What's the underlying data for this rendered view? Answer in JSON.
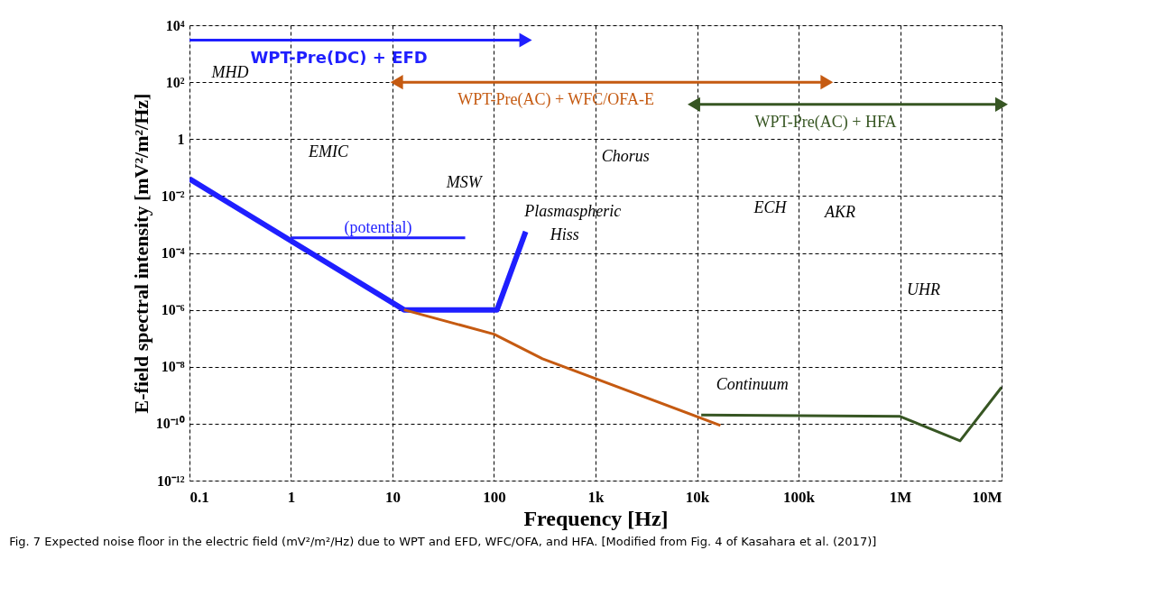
{
  "chart_data": {
    "type": "line",
    "xlabel": "Frequency [Hz]",
    "ylabel": "E-field spectral intensity [mV²/m²/Hz]",
    "xlim": [
      0.1,
      10000000
    ],
    "ylim": [
      1e-12,
      10000
    ],
    "log": "xy",
    "grid": true,
    "xticks": [
      0.1,
      1,
      10,
      100,
      {
        "value": 1000,
        "label": "1k"
      },
      {
        "value": 10000,
        "label": "10k"
      },
      {
        "value": 100000,
        "label": "100k"
      },
      {
        "value": 1000000,
        "label": "1M"
      },
      {
        "value": 10000000,
        "label": "10M"
      }
    ],
    "yticks": [
      {
        "value": 1e-12,
        "label": "10⁻¹²"
      },
      {
        "value": 1e-10,
        "label": "10⁻¹⁰"
      },
      {
        "value": 1e-08,
        "label": "10⁻⁸"
      },
      {
        "value": 1e-06,
        "label": "10⁻⁶"
      },
      {
        "value": 0.0001,
        "label": "10⁻⁴"
      },
      {
        "value": 0.01,
        "label": "10⁻²"
      },
      1,
      {
        "value": 100,
        "label": "10²"
      },
      {
        "value": 10000,
        "label": "10⁴"
      }
    ],
    "series": [
      {
        "color": "#1f1fff",
        "x": [
          0.1,
          13,
          107,
          205
        ],
        "values": [
          0.04,
          1e-06,
          1e-06,
          0.00056
        ]
      },
      {
        "color": "#c55a11",
        "x": [
          13,
          100,
          300,
          17000
        ],
        "values": [
          1e-06,
          1.4e-07,
          1.9e-08,
          8.7e-11
        ]
      },
      {
        "color": "#375623",
        "x": [
          11000,
          1000000,
          3900000,
          10000000
        ],
        "values": [
          2e-10,
          1.8e-10,
          2.5e-11,
          1.9e-09
        ]
      },
      {
        "name": "(potential)",
        "color": "#1f1fff",
        "x": [
          1,
          52
        ],
        "values": [
          0.00034,
          0.00034
        ]
      },
      {
        "name": "WPT-Pre(DC) + EFD",
        "color": "#1f1fff",
        "marker": "triangle",
        "x": [
          0.1,
          205
        ],
        "values": [
          3000,
          3000
        ]
      },
      {
        "name": "WPT-Pre(AC) + WFC/OFA-E",
        "color": "#c55a11",
        "marker": "triangle",
        "x": [
          11,
          190000
        ],
        "values": [
          100,
          100
        ]
      },
      {
        "name": "WPT-Pre(AC) + HFA",
        "color": "#375623",
        "marker": "triangle",
        "x": [
          9300,
          10000000
        ],
        "values": [
          16.5,
          16.5
        ]
      }
    ],
    "annotations": [
      "MHD",
      "EMIC",
      "MSW",
      "Plasmaspheric",
      "Hiss",
      "Chorus",
      "ECH",
      "AKR",
      "UHR",
      "Continuum",
      "Fig. 7  Expected noise floor in the electric field (mV²/m²/Hz) due to WPT and EFD, WFC/OFA, and HFA. [Modified from Fig. 4 of Kasahara et al. (2017)]"
    ]
  }
}
